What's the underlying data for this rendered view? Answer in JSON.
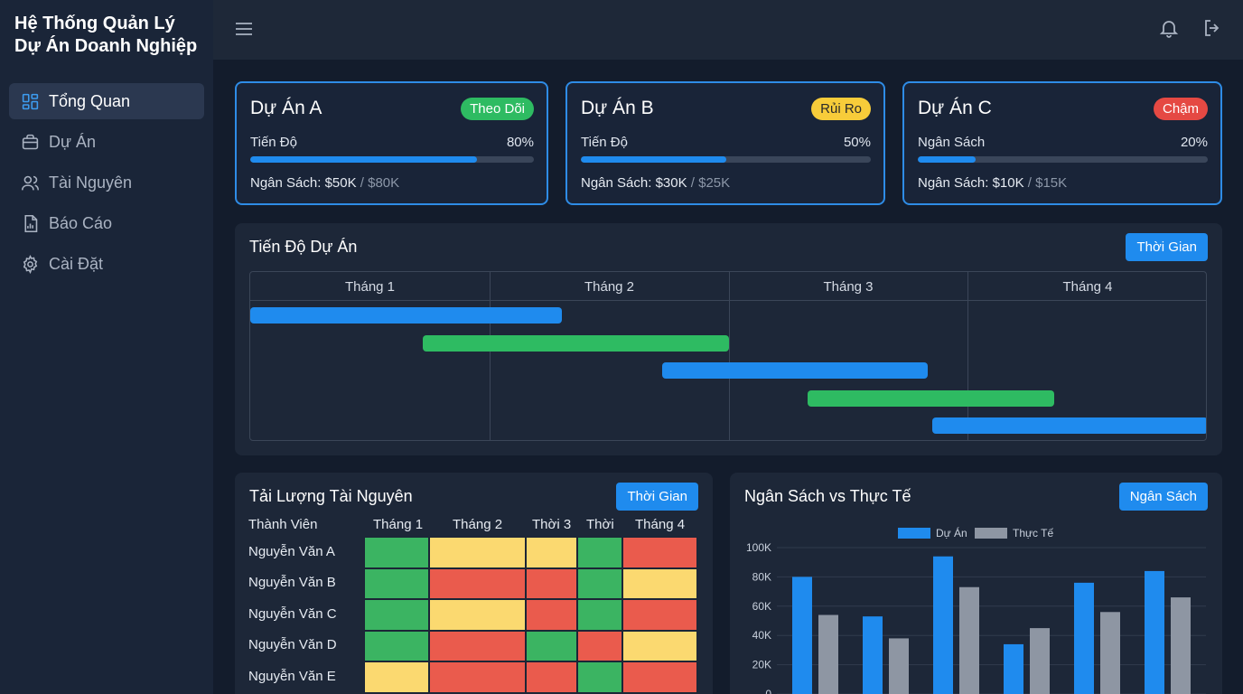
{
  "app": {
    "title_line1": "Hệ Thống Quản Lý",
    "title_line2": "Dự Án Doanh Nghiệp"
  },
  "nav": {
    "items": [
      {
        "label": "Tổng Quan",
        "icon": "dashboard-icon",
        "active": true
      },
      {
        "label": "Dự Án",
        "icon": "briefcase-icon",
        "active": false
      },
      {
        "label": "Tài Nguyên",
        "icon": "users-icon",
        "active": false
      },
      {
        "label": "Báo Cáo",
        "icon": "report-icon",
        "active": false
      },
      {
        "label": "Cài Đặt",
        "icon": "gear-icon",
        "active": false
      }
    ]
  },
  "topbar": {
    "icons": [
      "menu-icon",
      "bell-icon",
      "logout-icon"
    ]
  },
  "projects": [
    {
      "name": "Dự Án A",
      "status": "Theo Dõi",
      "status_color": "#2ebb62",
      "metric_label": "Tiến Độ",
      "metric_pct": "80%",
      "progress": 0.8,
      "budget_label": "Ngân Sách:",
      "budget_spent": "$50K",
      "budget_sep": "/",
      "budget_total": "$80K"
    },
    {
      "name": "Dự Án B",
      "status": "Rủi Ro",
      "status_color": "#f7cc3a",
      "metric_label": "Tiến Độ",
      "metric_pct": "50%",
      "progress": 0.5,
      "budget_label": "Ngân Sách:",
      "budget_spent": "$30K",
      "budget_sep": "/",
      "budget_total": "$25K"
    },
    {
      "name": "Dự Án C",
      "status": "Chậm",
      "status_color": "#e54943",
      "metric_label": "Ngân Sách",
      "metric_pct": "20%",
      "progress": 0.2,
      "budget_label": "Ngân Sách:",
      "budget_spent": "$10K",
      "budget_sep": "/",
      "budget_total": "$15K"
    }
  ],
  "gantt": {
    "title": "Tiến Độ Dự Án",
    "button": "Thời Gian",
    "months": [
      "Tháng 1",
      "Tháng 2",
      "Tháng 3",
      "Tháng 4"
    ],
    "tasks": [
      {
        "start_month": 0.0,
        "end_month": 1.3,
        "color": "#1f8bee"
      },
      {
        "start_month": 0.72,
        "end_month": 2.0,
        "color": "#2ebb62"
      },
      {
        "start_month": 1.72,
        "end_month": 2.83,
        "color": "#1f8bee"
      },
      {
        "start_month": 2.33,
        "end_month": 3.36,
        "color": "#2ebb62"
      },
      {
        "start_month": 2.85,
        "end_month": 4.0,
        "color": "#1f8bee"
      }
    ]
  },
  "resources": {
    "title": "Tải Lượng Tài Nguyên",
    "button": "Thời Gian",
    "member_header": "Thành Viên",
    "columns": [
      "Tháng 1",
      "Tháng 2",
      "Thời 3",
      "Thời",
      "Tháng 4"
    ],
    "members": [
      "Nguyễn Văn A",
      "Nguyễn Văn B",
      "Nguyễn Văn C",
      "Nguyễn Văn D",
      "Nguyễn Văn E"
    ],
    "levels": [
      [
        "g",
        "y",
        "y",
        "g",
        "r"
      ],
      [
        "g",
        "r",
        "r",
        "g",
        "y"
      ],
      [
        "g",
        "y",
        "r",
        "g",
        "r"
      ],
      [
        "g",
        "r",
        "g",
        "r",
        "y"
      ],
      [
        "y",
        "r",
        "r",
        "g",
        "r"
      ]
    ],
    "level_colors": {
      "g": "#3bb462",
      "y": "#fbd970",
      "r": "#ea5b4d"
    }
  },
  "budget": {
    "title": "Ngân Sách vs Thực Tế",
    "button": "Ngân Sách"
  },
  "chart_data": {
    "type": "bar",
    "title": "Ngân Sách vs Thực Tế",
    "series": [
      {
        "name": "Dự Án",
        "color": "#1f8bee",
        "values": [
          80,
          53,
          94,
          34,
          76,
          84
        ]
      },
      {
        "name": "Thực Tế",
        "color": "#8e96a3",
        "values": [
          54,
          38,
          73,
          45,
          56,
          66
        ]
      }
    ],
    "categories": [
      "",
      "",
      "",
      "",
      "",
      ""
    ],
    "y_ticks": [
      "0",
      "20K",
      "40K",
      "60K",
      "80K",
      "100K"
    ],
    "ylim": [
      0,
      100
    ],
    "legend": "top-center",
    "grid": true
  }
}
